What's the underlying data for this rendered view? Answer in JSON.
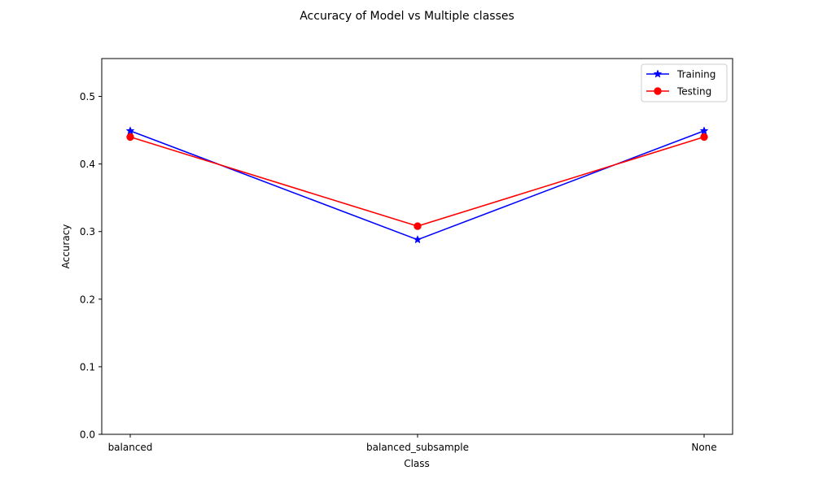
{
  "chart_data": {
    "type": "line",
    "title": "Accuracy of Model vs Multiple classes",
    "xlabel": "Class",
    "ylabel": "Accuracy",
    "categories": [
      "balanced",
      "balanced_subsample",
      "None"
    ],
    "ylim": [
      0,
      0.556
    ],
    "yticks": [
      0.0,
      0.1,
      0.2,
      0.3,
      0.4,
      0.5
    ],
    "ytick_labels": [
      "0.0",
      "0.1",
      "0.2",
      "0.3",
      "0.4",
      "0.5"
    ],
    "grid": false,
    "legend_position": "top-right",
    "series": [
      {
        "name": "Training",
        "values": [
          0.449,
          0.288,
          0.449
        ],
        "color": "#0000ff",
        "marker": "star"
      },
      {
        "name": "Testing",
        "values": [
          0.44,
          0.308,
          0.44
        ],
        "color": "#ff0000",
        "marker": "circle"
      }
    ]
  }
}
